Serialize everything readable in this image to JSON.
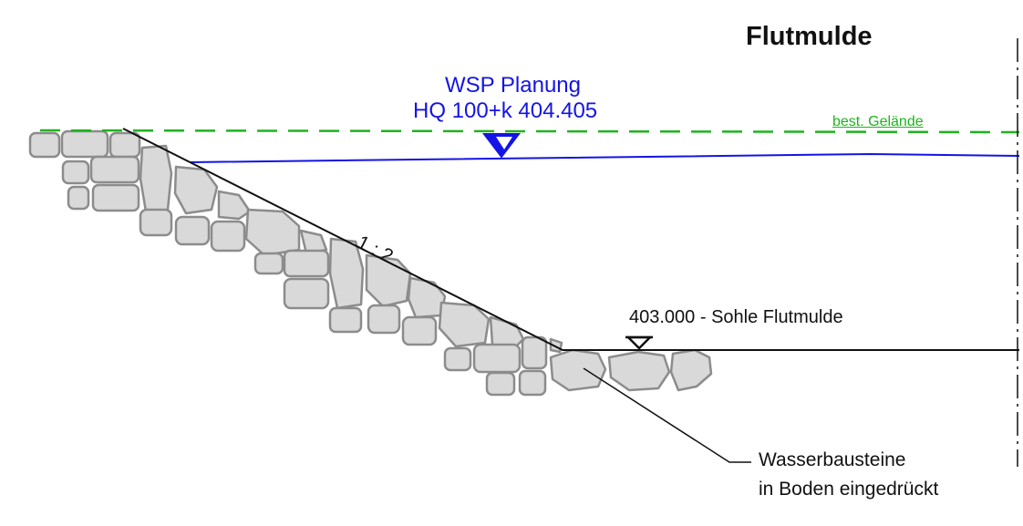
{
  "title": "Flutmulde",
  "wsp": {
    "line1": "WSP Planung",
    "line2": "HQ 100+k  404.405"
  },
  "terrain_label": "best. Gelände",
  "slope_label": "1 : 2",
  "bottom_label": "403.000 - Sohle Flutmulde",
  "annotation": {
    "line1": "Wasserbausteine",
    "line2": "in Boden eingedrückt"
  },
  "colors": {
    "water": "#1414e6",
    "terrain": "#1fb31f",
    "stone_fill": "#d9d9d9",
    "stone_edge": "#8c8c8c",
    "line": "#111111"
  }
}
